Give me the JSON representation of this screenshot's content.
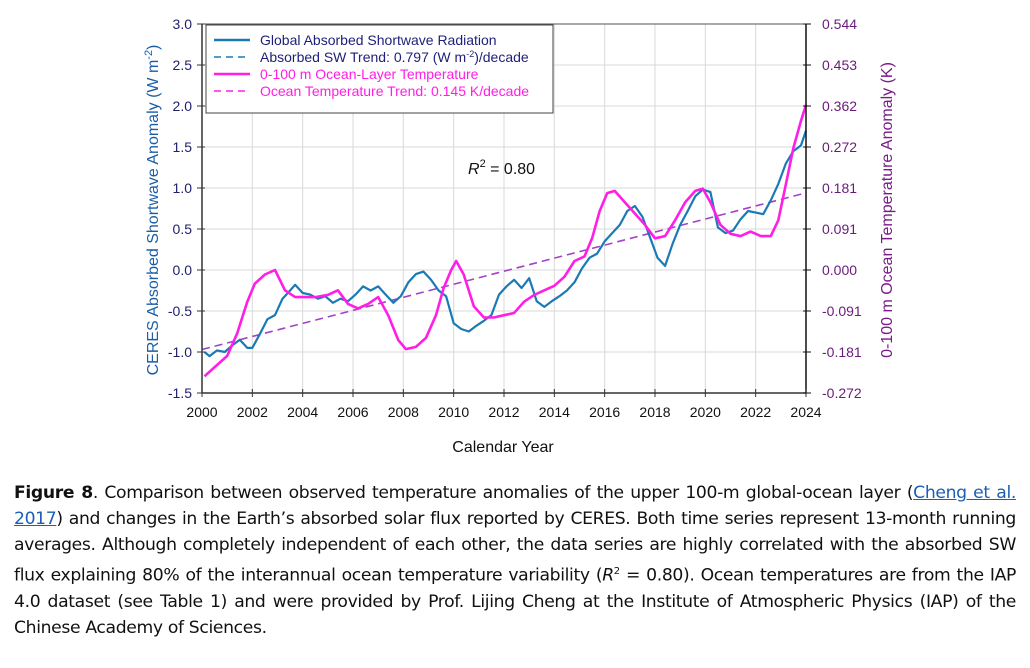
{
  "chart_data": {
    "type": "line",
    "title": "",
    "xlabel": "Calendar Year",
    "ylabel_left": "CERES Absorbed Shortwave Anomaly (W m⁻²)",
    "ylabel_right": "0-100 m Ocean Temperature Anomaly (K)",
    "xlim": [
      2000,
      2024
    ],
    "ylim_left": [
      -1.5,
      3.0
    ],
    "ylim_right": [
      -0.272,
      0.544
    ],
    "x_ticks": [
      "2000",
      "2002",
      "2004",
      "2006",
      "2008",
      "2010",
      "2012",
      "2014",
      "2016",
      "2018",
      "2020",
      "2022",
      "2024"
    ],
    "y_ticks_left": [
      "3.0",
      "2.5",
      "2.0",
      "1.5",
      "1.0",
      "0.5",
      "0.0",
      "-0.5",
      "-1.0",
      "-1.5"
    ],
    "y_ticks_right": [
      "0.544",
      "0.453",
      "0.362",
      "0.272",
      "0.181",
      "0.091",
      "0.000",
      "-0.091",
      "-0.181",
      "-0.272"
    ],
    "grid": true,
    "legend_placement": "top-left",
    "annotation": {
      "prefix": "R",
      "sup": "2",
      "suffix": " = 0.80"
    },
    "colors": {
      "sw": "#1a7ab5",
      "ocean": "#ff1ee6",
      "ocean_trend": "#cc33cc",
      "legend_text_sw": "#1f1f7a",
      "legend_text_ocean": "#ff1ee6"
    },
    "legend": [
      {
        "label": "Global Absorbed Shortwave Radiation",
        "style": "solid",
        "series": "sw"
      },
      {
        "label": "Absorbed SW Trend: 0.797 (W m",
        "sup": "-2",
        "label_suffix": ")/decade",
        "style": "dashed",
        "series": "sw"
      },
      {
        "label": "0-100 m Ocean-Layer Temperature",
        "style": "solid",
        "series": "ocean"
      },
      {
        "label": "Ocean Temperature Trend: 0.145 K/decade",
        "style": "dashed",
        "series": "ocean"
      }
    ],
    "series": [
      {
        "name": "Global Absorbed Shortwave Radiation",
        "axis": "left",
        "x": [
          2000.1,
          2000.3,
          2000.6,
          2000.9,
          2001.2,
          2001.5,
          2001.8,
          2002.0,
          2002.3,
          2002.6,
          2002.9,
          2003.2,
          2003.5,
          2003.7,
          2004.0,
          2004.3,
          2004.6,
          2004.9,
          2005.2,
          2005.5,
          2005.8,
          2006.1,
          2006.4,
          2006.7,
          2007.0,
          2007.3,
          2007.6,
          2007.9,
          2008.2,
          2008.5,
          2008.8,
          2009.1,
          2009.4,
          2009.7,
          2010.0,
          2010.3,
          2010.6,
          2010.9,
          2011.2,
          2011.5,
          2011.8,
          2012.1,
          2012.4,
          2012.7,
          2013.0,
          2013.3,
          2013.6,
          2013.9,
          2014.2,
          2014.5,
          2014.8,
          2015.1,
          2015.4,
          2015.7,
          2016.0,
          2016.3,
          2016.6,
          2016.9,
          2017.2,
          2017.5,
          2017.8,
          2018.1,
          2018.4,
          2018.7,
          2019.0,
          2019.3,
          2019.6,
          2019.9,
          2020.2,
          2020.5,
          2020.8,
          2021.1,
          2021.4,
          2021.7,
          2022.0,
          2022.3,
          2022.6,
          2022.9,
          2023.2,
          2023.5,
          2023.8,
          2024.0
        ],
        "values": [
          -1.0,
          -1.05,
          -0.98,
          -1.0,
          -0.92,
          -0.85,
          -0.95,
          -0.95,
          -0.78,
          -0.6,
          -0.55,
          -0.35,
          -0.25,
          -0.18,
          -0.28,
          -0.3,
          -0.35,
          -0.32,
          -0.4,
          -0.35,
          -0.38,
          -0.3,
          -0.2,
          -0.25,
          -0.2,
          -0.3,
          -0.4,
          -0.32,
          -0.15,
          -0.05,
          -0.02,
          -0.12,
          -0.25,
          -0.32,
          -0.65,
          -0.72,
          -0.75,
          -0.68,
          -0.62,
          -0.55,
          -0.3,
          -0.2,
          -0.12,
          -0.22,
          -0.1,
          -0.38,
          -0.45,
          -0.38,
          -0.32,
          -0.25,
          -0.15,
          0.02,
          0.15,
          0.2,
          0.35,
          0.45,
          0.55,
          0.72,
          0.78,
          0.65,
          0.4,
          0.15,
          0.05,
          0.32,
          0.55,
          0.72,
          0.9,
          0.98,
          0.95,
          0.52,
          0.45,
          0.48,
          0.62,
          0.72,
          0.7,
          0.68,
          0.85,
          1.05,
          1.3,
          1.45,
          1.52,
          1.7
        ]
      },
      {
        "name": "0-100 m Ocean-Layer Temperature",
        "axis": "right",
        "x": [
          2000.1,
          2000.5,
          2001.0,
          2001.4,
          2001.8,
          2002.1,
          2002.5,
          2002.9,
          2003.3,
          2003.7,
          2004.0,
          2004.5,
          2005.0,
          2005.4,
          2005.8,
          2006.2,
          2006.6,
          2007.0,
          2007.4,
          2007.8,
          2008.1,
          2008.5,
          2008.9,
          2009.3,
          2009.6,
          2009.9,
          2010.1,
          2010.4,
          2010.8,
          2011.2,
          2011.6,
          2012.0,
          2012.4,
          2012.8,
          2013.2,
          2013.6,
          2014.0,
          2014.4,
          2014.8,
          2015.2,
          2015.5,
          2015.8,
          2016.1,
          2016.4,
          2016.8,
          2017.2,
          2017.6,
          2018.0,
          2018.4,
          2018.8,
          2019.2,
          2019.6,
          2019.9,
          2020.2,
          2020.6,
          2021.0,
          2021.4,
          2021.8,
          2022.2,
          2022.6,
          2022.9,
          2023.2,
          2023.5,
          2023.8,
          2024.0
        ],
        "values": [
          -0.235,
          -0.215,
          -0.19,
          -0.14,
          -0.07,
          -0.03,
          -0.01,
          0.0,
          -0.045,
          -0.06,
          -0.06,
          -0.06,
          -0.055,
          -0.045,
          -0.075,
          -0.085,
          -0.075,
          -0.06,
          -0.1,
          -0.155,
          -0.175,
          -0.17,
          -0.15,
          -0.1,
          -0.04,
          0.0,
          0.02,
          -0.01,
          -0.08,
          -0.105,
          -0.105,
          -0.1,
          -0.095,
          -0.07,
          -0.055,
          -0.045,
          -0.035,
          -0.015,
          0.02,
          0.03,
          0.07,
          0.13,
          0.17,
          0.175,
          0.15,
          0.125,
          0.1,
          0.07,
          0.075,
          0.11,
          0.15,
          0.175,
          0.18,
          0.15,
          0.1,
          0.08,
          0.075,
          0.085,
          0.075,
          0.075,
          0.11,
          0.19,
          0.27,
          0.33,
          0.365
        ]
      },
      {
        "name": "Absorbed SW Trend",
        "axis": "left",
        "x": [
          2000,
          2024
        ],
        "values": [
          -0.97,
          0.94
        ],
        "style": "dashed"
      }
    ]
  },
  "caption": {
    "figure_label": "Figure 8",
    "text_1": ". Comparison between observed temperature anomalies of the upper 100-m global-ocean layer (",
    "link": "Cheng et al. 2017",
    "text_2": ") and changes in the Earth’s absorbed solar flux reported by CERES. Both time series represent 13-month running averages. Although completely independent of each other, the data series are highly correlated with the absorbed SW flux explaining 80% of the interannual ocean temperature variability (",
    "r_symbol": "R",
    "r_sup": "2",
    "text_3": " = 0.80). Ocean temperatures are from the IAP 4.0 dataset (see Table 1) and were provided by Prof. Lijing Cheng at the Institute of Atmospheric Physics (IAP) of the Chinese Academy of Sciences."
  }
}
